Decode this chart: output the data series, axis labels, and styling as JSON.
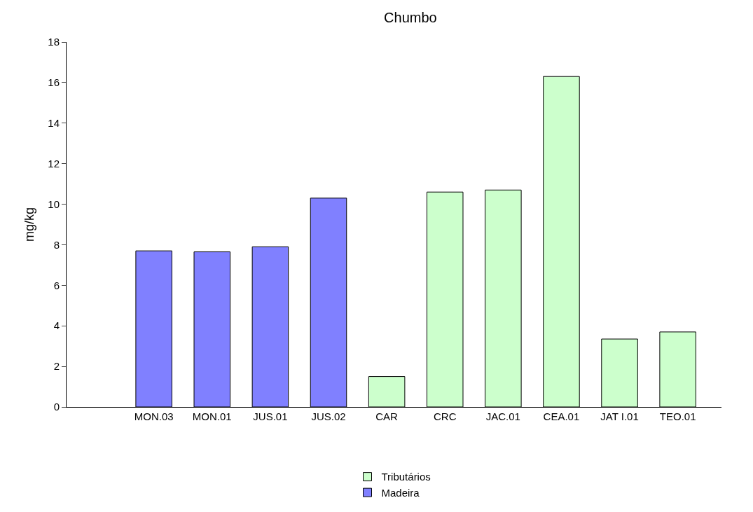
{
  "chart_data": {
    "type": "bar",
    "title": "Chumbo",
    "ylabel": "mg/kg",
    "categories": [
      "MON.03",
      "MON.01",
      "JUS.01",
      "JUS.02",
      "CAR",
      "CRC",
      "JAC.01",
      "CEA.01",
      "JAT I.01",
      "TEO.01"
    ],
    "series": [
      {
        "name": "Tributários",
        "color": "#ccffcc",
        "values": [
          null,
          null,
          null,
          null,
          1.5,
          10.6,
          10.7,
          16.3,
          3.35,
          3.7
        ]
      },
      {
        "name": "Madeira",
        "color": "#8080ff",
        "values": [
          7.7,
          7.65,
          7.9,
          10.3,
          null,
          null,
          null,
          null,
          null,
          null
        ]
      }
    ],
    "ylim": [
      0,
      18
    ],
    "yticks": [
      0,
      2,
      4,
      6,
      8,
      10,
      12,
      14,
      16,
      18
    ],
    "legend": "bottom"
  }
}
